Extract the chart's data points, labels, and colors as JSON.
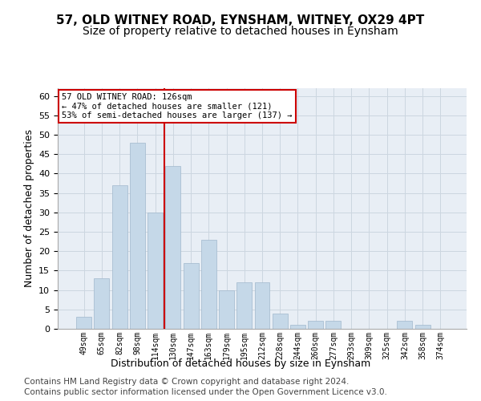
{
  "title": "57, OLD WITNEY ROAD, EYNSHAM, WITNEY, OX29 4PT",
  "subtitle": "Size of property relative to detached houses in Eynsham",
  "xlabel": "Distribution of detached houses by size in Eynsham",
  "ylabel": "Number of detached properties",
  "bin_labels": [
    "49sqm",
    "65sqm",
    "82sqm",
    "98sqm",
    "114sqm",
    "130sqm",
    "147sqm",
    "163sqm",
    "179sqm",
    "195sqm",
    "212sqm",
    "228sqm",
    "244sqm",
    "260sqm",
    "277sqm",
    "293sqm",
    "309sqm",
    "325sqm",
    "342sqm",
    "358sqm",
    "374sqm"
  ],
  "values": [
    3,
    13,
    37,
    48,
    30,
    42,
    17,
    23,
    10,
    12,
    12,
    4,
    1,
    2,
    2,
    0,
    0,
    0,
    2,
    1,
    0
  ],
  "bar_color": "#c5d8e8",
  "bar_edge_color": "#a0b8cc",
  "vline_color": "#cc0000",
  "vline_pos": 4.5,
  "annotation_text": "57 OLD WITNEY ROAD: 126sqm\n← 47% of detached houses are smaller (121)\n53% of semi-detached houses are larger (137) →",
  "annotation_box_facecolor": "#ffffff",
  "annotation_box_edgecolor": "#cc0000",
  "ylim": [
    0,
    62
  ],
  "yticks": [
    0,
    5,
    10,
    15,
    20,
    25,
    30,
    35,
    40,
    45,
    50,
    55,
    60
  ],
  "grid_color": "#ccd6e0",
  "background_color": "#e8eef5",
  "footer_line1": "Contains HM Land Registry data © Crown copyright and database right 2024.",
  "footer_line2": "Contains public sector information licensed under the Open Government Licence v3.0.",
  "title_fontsize": 11,
  "subtitle_fontsize": 10,
  "xlabel_fontsize": 9,
  "ylabel_fontsize": 9,
  "tick_fontsize": 7,
  "footer_fontsize": 7.5
}
